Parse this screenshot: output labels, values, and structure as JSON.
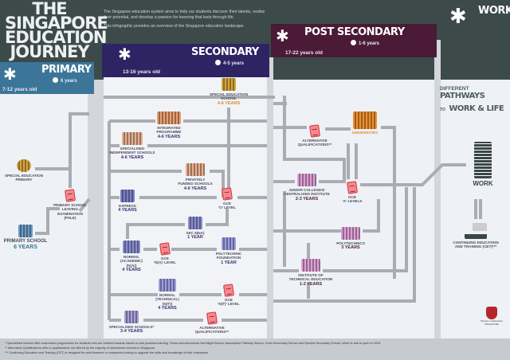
{
  "title": "THE\nSINGAPORE\nEDUCATION\nJOURNEY",
  "intro": [
    "The Singapore education system aims to help our students discover their talents, realise their potential, and develop a passion for learning that lasts through life.",
    "This infographic provides an overview of the Singapore education landscape."
  ],
  "stages": {
    "primary": {
      "title": "PRIMARY",
      "duration": "6 years",
      "age": "7-12 years old",
      "color": "#3b7699"
    },
    "secondary": {
      "title": "SECONDARY",
      "duration": "4-5 years",
      "age": "13-16 years old",
      "color": "#2e2464"
    },
    "post": {
      "title": "POST SECONDARY",
      "duration": "1-6 years",
      "age": "17-22 years old",
      "color": "#4a1a36"
    },
    "work": {
      "title": "WORK",
      "color": "#3c4a4a"
    }
  },
  "pathways": {
    "small1": "DIFFERENT",
    "big1": "PATHWAYS",
    "small2": "TO",
    "big2": "WORK & LIFE"
  },
  "nodes": {
    "sped_primary": {
      "label": "SPECIAL EDUCATION\nPRIMARY",
      "years": ""
    },
    "primary_school": {
      "label": "PRIMARY SCHOOL",
      "years": "6 YEARS"
    },
    "psle": {
      "label": "PRIMARY SCHOOL\nLEAVING\nEXAMINATION\n(PSLE)",
      "years": ""
    },
    "sped_school": {
      "label": "SPECIAL EDUCATION\nSCHOOL",
      "years": "4-6 YEARS"
    },
    "ip": {
      "label": "INTEGRATED\nPROGRAMME",
      "years": "4-6 YEARS"
    },
    "sis": {
      "label": "SPECIALISED\nINDEPENDENT SCHOOLS",
      "years": "4-6 YEARS"
    },
    "pfs": {
      "label": "PRIVATELY\nFUNDED SCHOOLS",
      "years": "4-6 YEARS"
    },
    "express": {
      "label": "EXPRESS",
      "years": "4 YEARS"
    },
    "o_level": {
      "label": "GCE\n'O' LEVEL",
      "years": ""
    },
    "sec5": {
      "label": "SEC 5(NA)",
      "years": "1 YEAR"
    },
    "na": {
      "label": "NORMAL\n(ACADEMIC)\n(N(A))",
      "years": "4 YEARS"
    },
    "na_level": {
      "label": "GCE\n'N(A)' LEVEL",
      "years": ""
    },
    "pfp": {
      "label": "POLYTECHNIC\nFOUNDATION",
      "years": "1 YEAR"
    },
    "nt": {
      "label": "NORMAL\n(TECHNICAL)\n(N(T))",
      "years": "4 YEARS"
    },
    "nt_level": {
      "label": "GCE\n'N(T)' LEVEL",
      "years": ""
    },
    "specialised": {
      "label": "SPECIALISED SCHOOLS*",
      "years": "3-4 YEARS"
    },
    "alt_sec": {
      "label": "ALTERNATIVE\nQUALIFICATIONS**",
      "years": ""
    },
    "alt_post": {
      "label": "ALTERNATIVE\nQUALIFICATIONS**",
      "years": ""
    },
    "universities": {
      "label": "UNIVERSITIES",
      "years": ""
    },
    "jc": {
      "label": "JUNIOR COLLEGES/\nCENTRALISED INSTITUTE",
      "years": "2-3 YEARS"
    },
    "a_level": {
      "label": "GCE\n'A' LEVELS",
      "years": ""
    },
    "poly": {
      "label": "POLYTECHNICS",
      "years": "3 YEARS"
    },
    "ite": {
      "label": "INSTITUTE OF\nTECHNICAL EDUCATION",
      "years": "1-2 YEARS"
    },
    "work": {
      "label": "WORK",
      "years": ""
    },
    "cet": {
      "label": "CONTINUING EDUCATION\nAND TRAINING (CET)***",
      "years": ""
    }
  },
  "logo_text": "Ministry of Education\nSINGAPORE",
  "footnotes": [
    "* Specialised schools offer customised programmes for students who are inclined towards hands-on and practical learning. These schools include Northlight School, Assumption Pathway School, Crest Secondary School and Spectra Secondary School, which is due to open in 2014.",
    "** Alternative Qualifications refer to qualifications not offered by the majority of mainstream schools in Singapore.",
    "*** Continuing Education and Training (CET) is designed for adult learners or companies looking to upgrade the skills and knowledge of their employees."
  ]
}
